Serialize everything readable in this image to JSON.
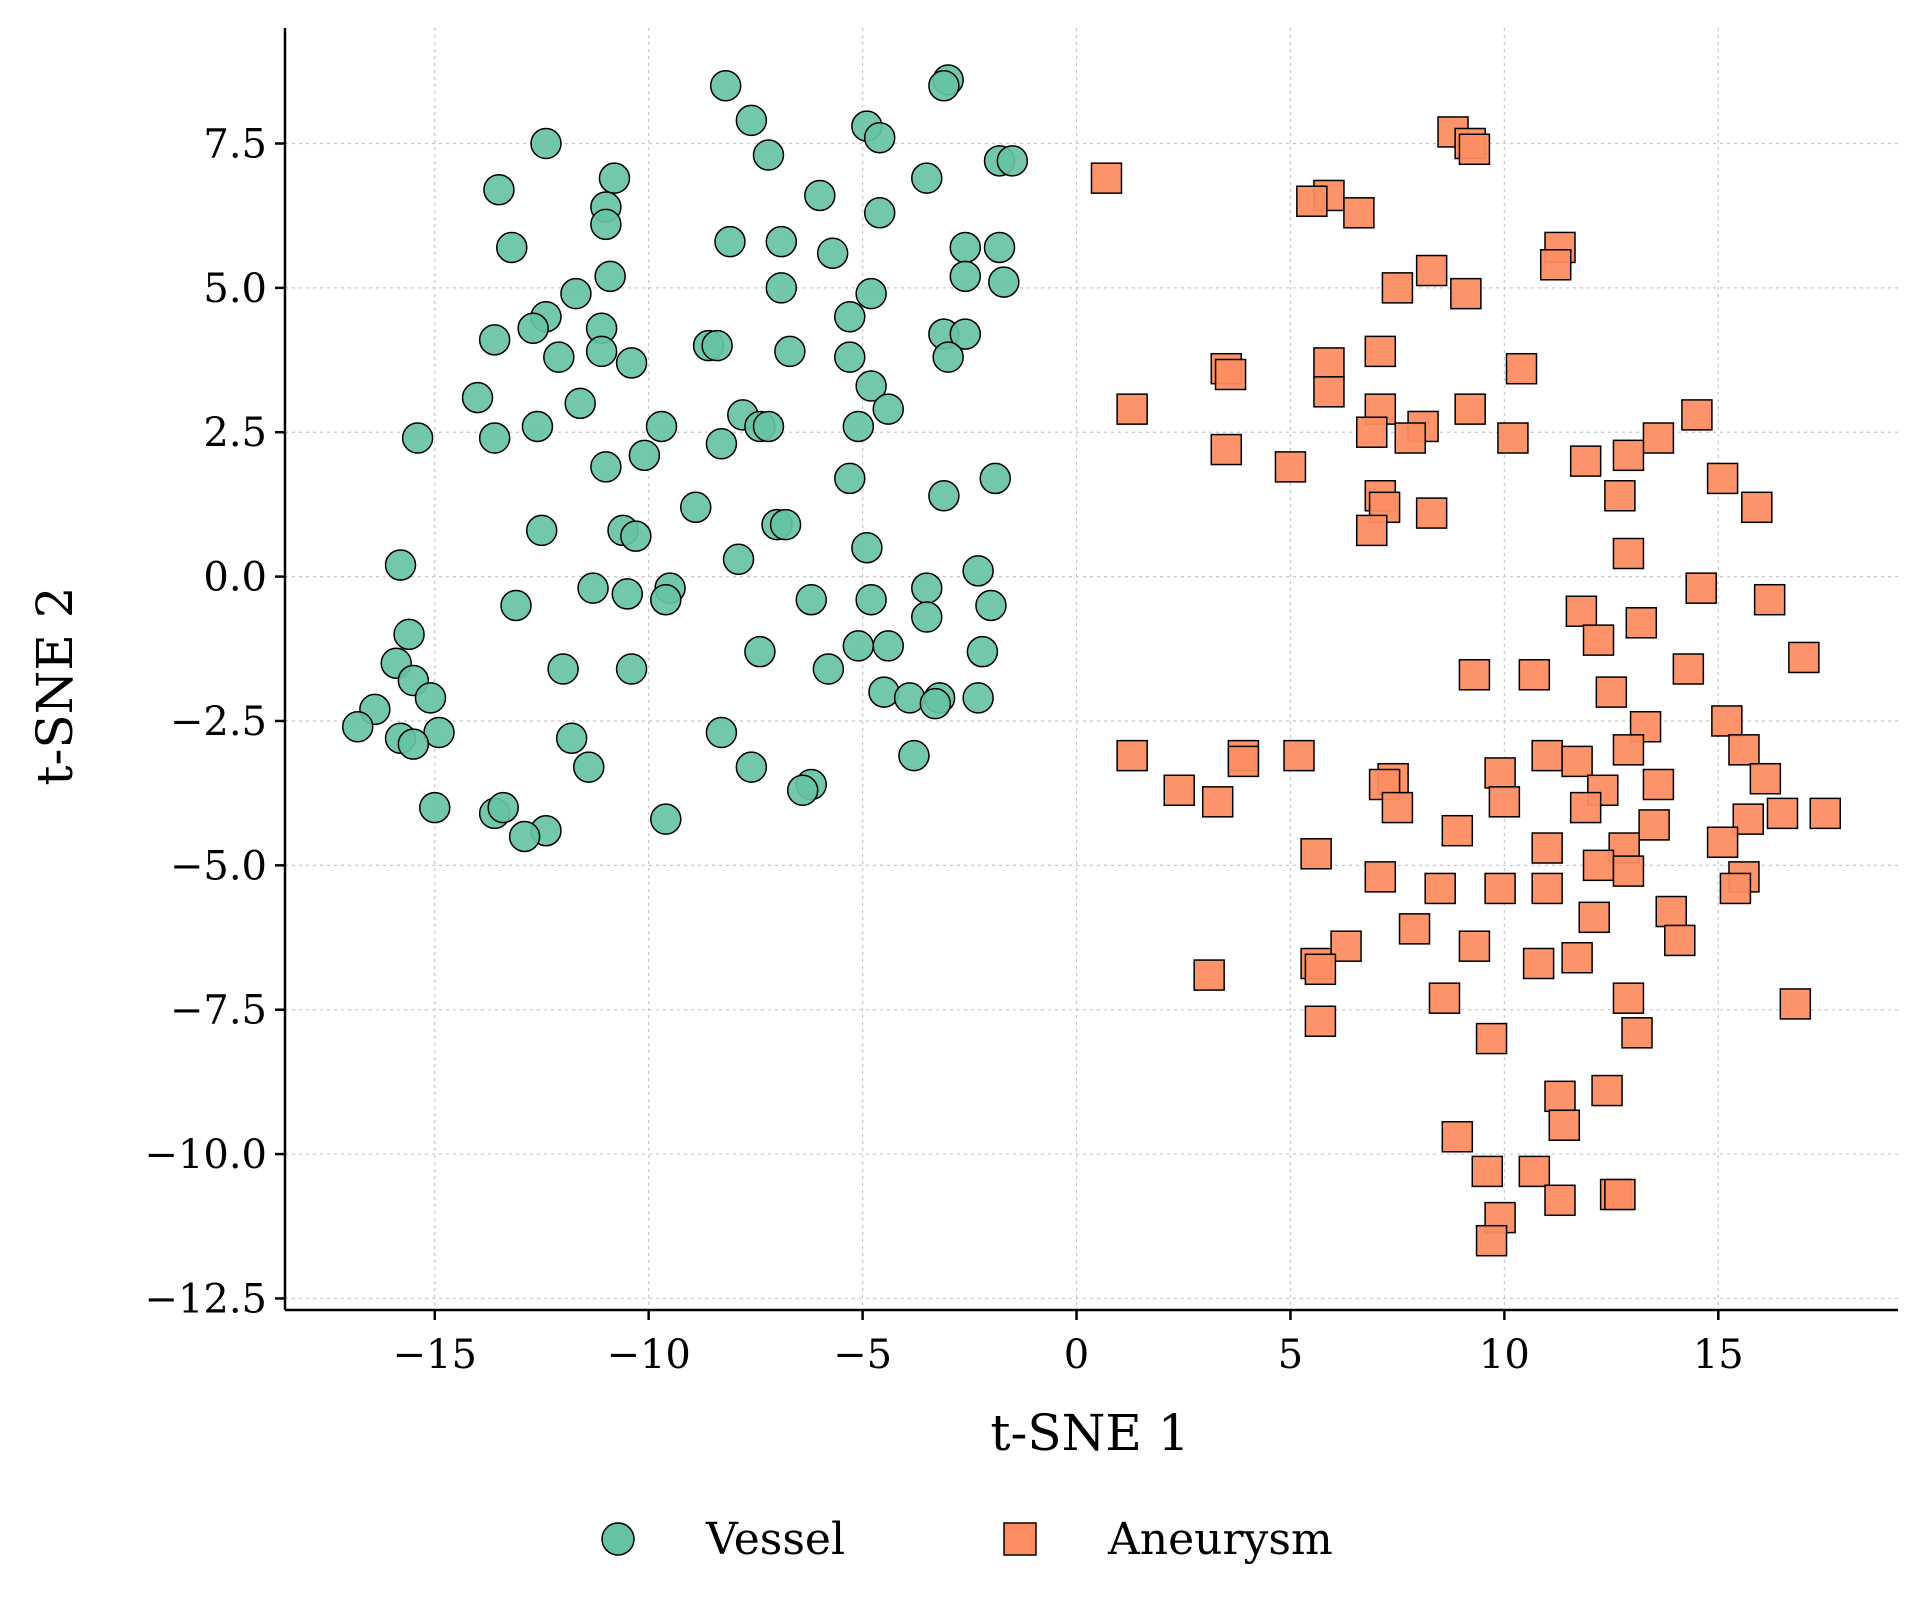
{
  "chart_data": {
    "type": "scatter",
    "title": "",
    "xlabel": "t-SNE 1",
    "ylabel": "t-SNE 2",
    "xlim": [
      -18.5,
      19.2
    ],
    "ylim": [
      -12.7,
      9.5
    ],
    "xticks": [
      -15,
      -10,
      -5,
      0,
      5,
      10,
      15
    ],
    "yticks": [
      -12.5,
      -10.0,
      -7.5,
      -5.0,
      -2.5,
      0.0,
      2.5,
      5.0,
      7.5
    ],
    "xtick_labels": [
      "−15",
      "−10",
      "−5",
      "0",
      "5",
      "10",
      "15"
    ],
    "ytick_labels": [
      "−12.5",
      "−10.0",
      "−7.5",
      "−5.0",
      "−2.5",
      "0.0",
      "2.5",
      "5.0",
      "7.5"
    ],
    "grid": true,
    "legend_position": "bottom-center",
    "series": [
      {
        "name": "Vessel",
        "marker": "circle",
        "color": "#66c2a5",
        "points": [
          [
            -8.2,
            8.5
          ],
          [
            -3.0,
            8.6
          ],
          [
            -3.1,
            8.5
          ],
          [
            -7.6,
            7.9
          ],
          [
            -4.9,
            7.8
          ],
          [
            -4.6,
            7.6
          ],
          [
            -12.4,
            7.5
          ],
          [
            -7.2,
            7.3
          ],
          [
            -1.8,
            7.2
          ],
          [
            -1.5,
            7.2
          ],
          [
            -3.5,
            6.9
          ],
          [
            -10.8,
            6.9
          ],
          [
            -13.5,
            6.7
          ],
          [
            -6.0,
            6.6
          ],
          [
            -11.0,
            6.4
          ],
          [
            -11.0,
            6.1
          ],
          [
            -4.6,
            6.3
          ],
          [
            -13.2,
            5.7
          ],
          [
            -8.1,
            5.8
          ],
          [
            -6.9,
            5.8
          ],
          [
            -5.7,
            5.6
          ],
          [
            -2.6,
            5.7
          ],
          [
            -1.8,
            5.7
          ],
          [
            -10.9,
            5.2
          ],
          [
            -2.6,
            5.2
          ],
          [
            -1.7,
            5.1
          ],
          [
            -6.9,
            5.0
          ],
          [
            -4.8,
            4.9
          ],
          [
            -11.7,
            4.9
          ],
          [
            -12.4,
            4.5
          ],
          [
            -12.7,
            4.3
          ],
          [
            -11.1,
            4.3
          ],
          [
            -5.3,
            4.5
          ],
          [
            -13.6,
            4.1
          ],
          [
            -3.1,
            4.2
          ],
          [
            -2.6,
            4.2
          ],
          [
            -8.6,
            4.0
          ],
          [
            -8.4,
            4.0
          ],
          [
            -6.7,
            3.9
          ],
          [
            -11.1,
            3.9
          ],
          [
            -12.1,
            3.8
          ],
          [
            -5.3,
            3.8
          ],
          [
            -10.4,
            3.7
          ],
          [
            -3.0,
            3.8
          ],
          [
            -14.0,
            3.1
          ],
          [
            -11.6,
            3.0
          ],
          [
            -4.8,
            3.3
          ],
          [
            -4.4,
            2.9
          ],
          [
            -7.8,
            2.8
          ],
          [
            -7.4,
            2.6
          ],
          [
            -7.2,
            2.6
          ],
          [
            -12.6,
            2.6
          ],
          [
            -9.7,
            2.6
          ],
          [
            -5.1,
            2.6
          ],
          [
            -13.6,
            2.4
          ],
          [
            -15.4,
            2.4
          ],
          [
            -8.3,
            2.3
          ],
          [
            -10.1,
            2.1
          ],
          [
            -11.0,
            1.9
          ],
          [
            -5.3,
            1.7
          ],
          [
            -1.9,
            1.7
          ],
          [
            -3.1,
            1.4
          ],
          [
            -8.9,
            1.2
          ],
          [
            -7.0,
            0.9
          ],
          [
            -6.8,
            0.9
          ],
          [
            -12.5,
            0.8
          ],
          [
            -10.6,
            0.8
          ],
          [
            -10.3,
            0.7
          ],
          [
            -4.9,
            0.5
          ],
          [
            -7.9,
            0.3
          ],
          [
            -15.8,
            0.2
          ],
          [
            -2.3,
            0.1
          ],
          [
            -11.3,
            -0.2
          ],
          [
            -3.5,
            -0.2
          ],
          [
            -9.5,
            -0.2
          ],
          [
            -10.5,
            -0.3
          ],
          [
            -6.2,
            -0.4
          ],
          [
            -9.6,
            -0.4
          ],
          [
            -4.8,
            -0.4
          ],
          [
            -2.0,
            -0.5
          ],
          [
            -13.1,
            -0.5
          ],
          [
            -3.5,
            -0.7
          ],
          [
            -15.6,
            -1.0
          ],
          [
            -5.1,
            -1.2
          ],
          [
            -4.4,
            -1.2
          ],
          [
            -2.2,
            -1.3
          ],
          [
            -7.4,
            -1.3
          ],
          [
            -15.9,
            -1.5
          ],
          [
            -12.0,
            -1.6
          ],
          [
            -10.4,
            -1.6
          ],
          [
            -5.8,
            -1.6
          ],
          [
            -15.5,
            -1.8
          ],
          [
            -4.5,
            -2.0
          ],
          [
            -3.9,
            -2.1
          ],
          [
            -3.2,
            -2.1
          ],
          [
            -3.3,
            -2.2
          ],
          [
            -2.3,
            -2.1
          ],
          [
            -15.1,
            -2.1
          ],
          [
            -16.4,
            -2.3
          ],
          [
            -16.8,
            -2.6
          ],
          [
            -14.9,
            -2.7
          ],
          [
            -8.3,
            -2.7
          ],
          [
            -15.8,
            -2.8
          ],
          [
            -11.8,
            -2.8
          ],
          [
            -15.5,
            -2.9
          ],
          [
            -3.8,
            -3.1
          ],
          [
            -11.4,
            -3.3
          ],
          [
            -7.6,
            -3.3
          ],
          [
            -6.2,
            -3.6
          ],
          [
            -6.4,
            -3.7
          ],
          [
            -15.0,
            -4.0
          ],
          [
            -13.6,
            -4.1
          ],
          [
            -13.4,
            -4.0
          ],
          [
            -9.6,
            -4.2
          ],
          [
            -12.4,
            -4.4
          ],
          [
            -12.9,
            -4.5
          ]
        ]
      },
      {
        "name": "Aneurysm",
        "marker": "square",
        "color": "#fc8d62",
        "points": [
          [
            8.8,
            7.7
          ],
          [
            9.2,
            7.5
          ],
          [
            9.3,
            7.4
          ],
          [
            0.7,
            6.9
          ],
          [
            5.9,
            6.6
          ],
          [
            5.5,
            6.5
          ],
          [
            6.6,
            6.3
          ],
          [
            11.3,
            5.7
          ],
          [
            11.2,
            5.4
          ],
          [
            8.3,
            5.3
          ],
          [
            7.5,
            5.0
          ],
          [
            9.1,
            4.9
          ],
          [
            7.1,
            3.9
          ],
          [
            5.9,
            3.7
          ],
          [
            3.5,
            3.6
          ],
          [
            3.6,
            3.5
          ],
          [
            10.4,
            3.6
          ],
          [
            5.9,
            3.2
          ],
          [
            7.1,
            2.9
          ],
          [
            9.2,
            2.9
          ],
          [
            1.3,
            2.9
          ],
          [
            14.5,
            2.8
          ],
          [
            8.1,
            2.6
          ],
          [
            6.9,
            2.5
          ],
          [
            7.8,
            2.4
          ],
          [
            10.2,
            2.4
          ],
          [
            13.6,
            2.4
          ],
          [
            3.5,
            2.2
          ],
          [
            12.9,
            2.1
          ],
          [
            5.0,
            1.9
          ],
          [
            11.9,
            2.0
          ],
          [
            15.1,
            1.7
          ],
          [
            7.1,
            1.4
          ],
          [
            12.7,
            1.4
          ],
          [
            7.2,
            1.2
          ],
          [
            15.9,
            1.2
          ],
          [
            8.3,
            1.1
          ],
          [
            6.9,
            0.8
          ],
          [
            12.9,
            0.4
          ],
          [
            14.6,
            -0.2
          ],
          [
            16.2,
            -0.4
          ],
          [
            11.8,
            -0.6
          ],
          [
            13.2,
            -0.8
          ],
          [
            12.2,
            -1.1
          ],
          [
            17.0,
            -1.4
          ],
          [
            14.3,
            -1.6
          ],
          [
            9.3,
            -1.7
          ],
          [
            10.7,
            -1.7
          ],
          [
            12.5,
            -2.0
          ],
          [
            15.2,
            -2.5
          ],
          [
            13.3,
            -2.6
          ],
          [
            15.6,
            -3.0
          ],
          [
            12.9,
            -3.0
          ],
          [
            11.0,
            -3.1
          ],
          [
            11.7,
            -3.2
          ],
          [
            1.3,
            -3.1
          ],
          [
            3.9,
            -3.1
          ],
          [
            5.2,
            -3.1
          ],
          [
            3.9,
            -3.2
          ],
          [
            9.9,
            -3.4
          ],
          [
            7.4,
            -3.5
          ],
          [
            7.2,
            -3.6
          ],
          [
            13.6,
            -3.6
          ],
          [
            16.1,
            -3.5
          ],
          [
            2.4,
            -3.7
          ],
          [
            12.3,
            -3.7
          ],
          [
            3.3,
            -3.9
          ],
          [
            10.0,
            -3.9
          ],
          [
            7.5,
            -4.0
          ],
          [
            11.9,
            -4.0
          ],
          [
            15.7,
            -4.2
          ],
          [
            17.5,
            -4.1
          ],
          [
            16.5,
            -4.1
          ],
          [
            13.5,
            -4.3
          ],
          [
            8.9,
            -4.4
          ],
          [
            15.1,
            -4.6
          ],
          [
            11.0,
            -4.7
          ],
          [
            12.8,
            -4.7
          ],
          [
            5.6,
            -4.8
          ],
          [
            12.2,
            -5.0
          ],
          [
            12.9,
            -5.1
          ],
          [
            7.1,
            -5.2
          ],
          [
            15.6,
            -5.2
          ],
          [
            15.4,
            -5.4
          ],
          [
            8.5,
            -5.4
          ],
          [
            9.9,
            -5.4
          ],
          [
            11.0,
            -5.4
          ],
          [
            13.9,
            -5.8
          ],
          [
            12.1,
            -5.9
          ],
          [
            7.9,
            -6.1
          ],
          [
            14.1,
            -6.3
          ],
          [
            6.3,
            -6.4
          ],
          [
            9.3,
            -6.4
          ],
          [
            11.7,
            -6.6
          ],
          [
            5.6,
            -6.7
          ],
          [
            10.8,
            -6.7
          ],
          [
            5.7,
            -6.8
          ],
          [
            3.1,
            -6.9
          ],
          [
            8.6,
            -7.3
          ],
          [
            12.9,
            -7.3
          ],
          [
            16.8,
            -7.4
          ],
          [
            5.7,
            -7.7
          ],
          [
            13.1,
            -7.9
          ],
          [
            9.7,
            -8.0
          ],
          [
            12.4,
            -8.9
          ],
          [
            11.3,
            -9.0
          ],
          [
            11.4,
            -9.5
          ],
          [
            8.9,
            -9.7
          ],
          [
            9.6,
            -10.3
          ],
          [
            10.7,
            -10.3
          ],
          [
            12.6,
            -10.7
          ],
          [
            12.7,
            -10.7
          ],
          [
            11.3,
            -10.8
          ],
          [
            9.9,
            -11.1
          ],
          [
            9.7,
            -11.5
          ]
        ]
      }
    ]
  }
}
